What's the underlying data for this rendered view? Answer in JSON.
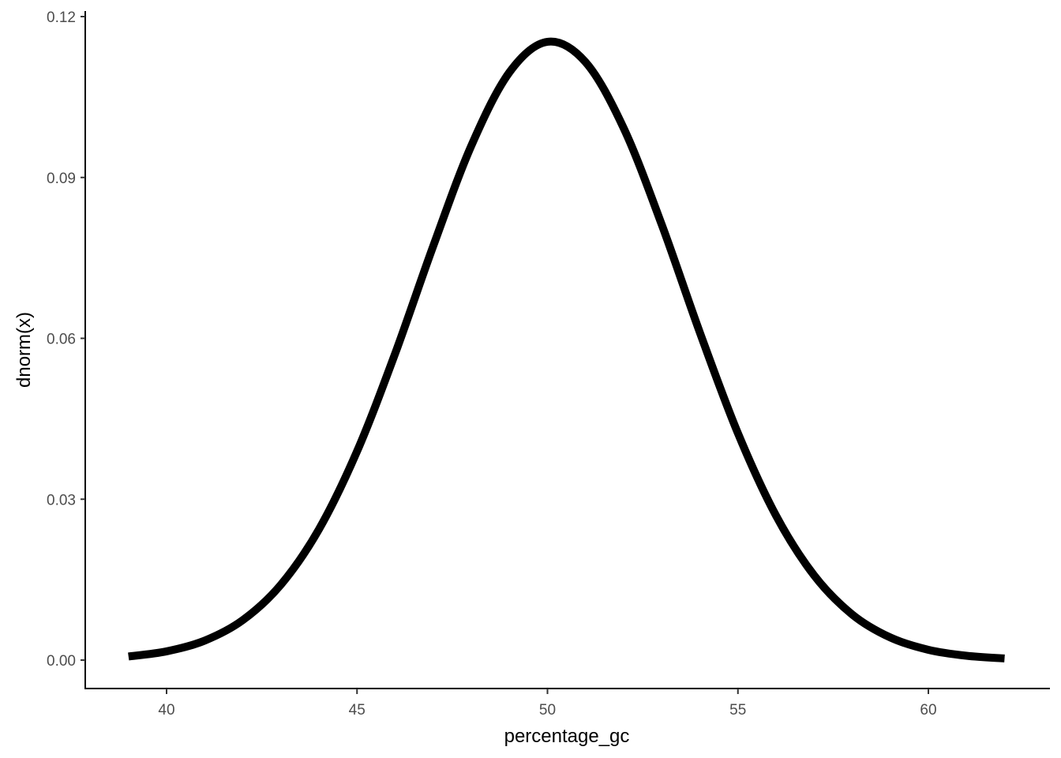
{
  "chart_data": {
    "type": "line",
    "title": "",
    "xlabel": "percentage_gc",
    "ylabel": "dnorm(x)",
    "xlim": [
      38,
      63
    ],
    "ylim": [
      -0.0055,
      0.1205
    ],
    "x_ticks": [
      40,
      45,
      50,
      55,
      60
    ],
    "x_tick_labels": [
      "40",
      "45",
      "50",
      "55",
      "60"
    ],
    "y_ticks": [
      0,
      0.03,
      0.06,
      0.09,
      0.12
    ],
    "y_tick_labels": [
      "0.00",
      "0.03",
      "0.06",
      "0.09",
      "0.12"
    ],
    "grid": false,
    "line_color": "#000000",
    "series": [
      {
        "x": [
          39,
          40,
          41,
          42,
          43,
          44,
          45,
          46,
          47,
          48,
          49,
          50,
          51,
          52,
          53,
          54,
          55,
          56,
          57,
          58,
          59,
          60,
          61,
          62
        ],
        "y": [
          0.00067,
          0.00163,
          0.00363,
          0.00745,
          0.01405,
          0.02438,
          0.03892,
          0.05715,
          0.0772,
          0.09591,
          0.1096,
          0.1153,
          0.1115,
          0.0992,
          0.0812,
          0.0611,
          0.0423,
          0.02694,
          0.0158,
          0.00851,
          0.00422,
          0.00192,
          0.00081,
          0.00031
        ]
      }
    ]
  }
}
